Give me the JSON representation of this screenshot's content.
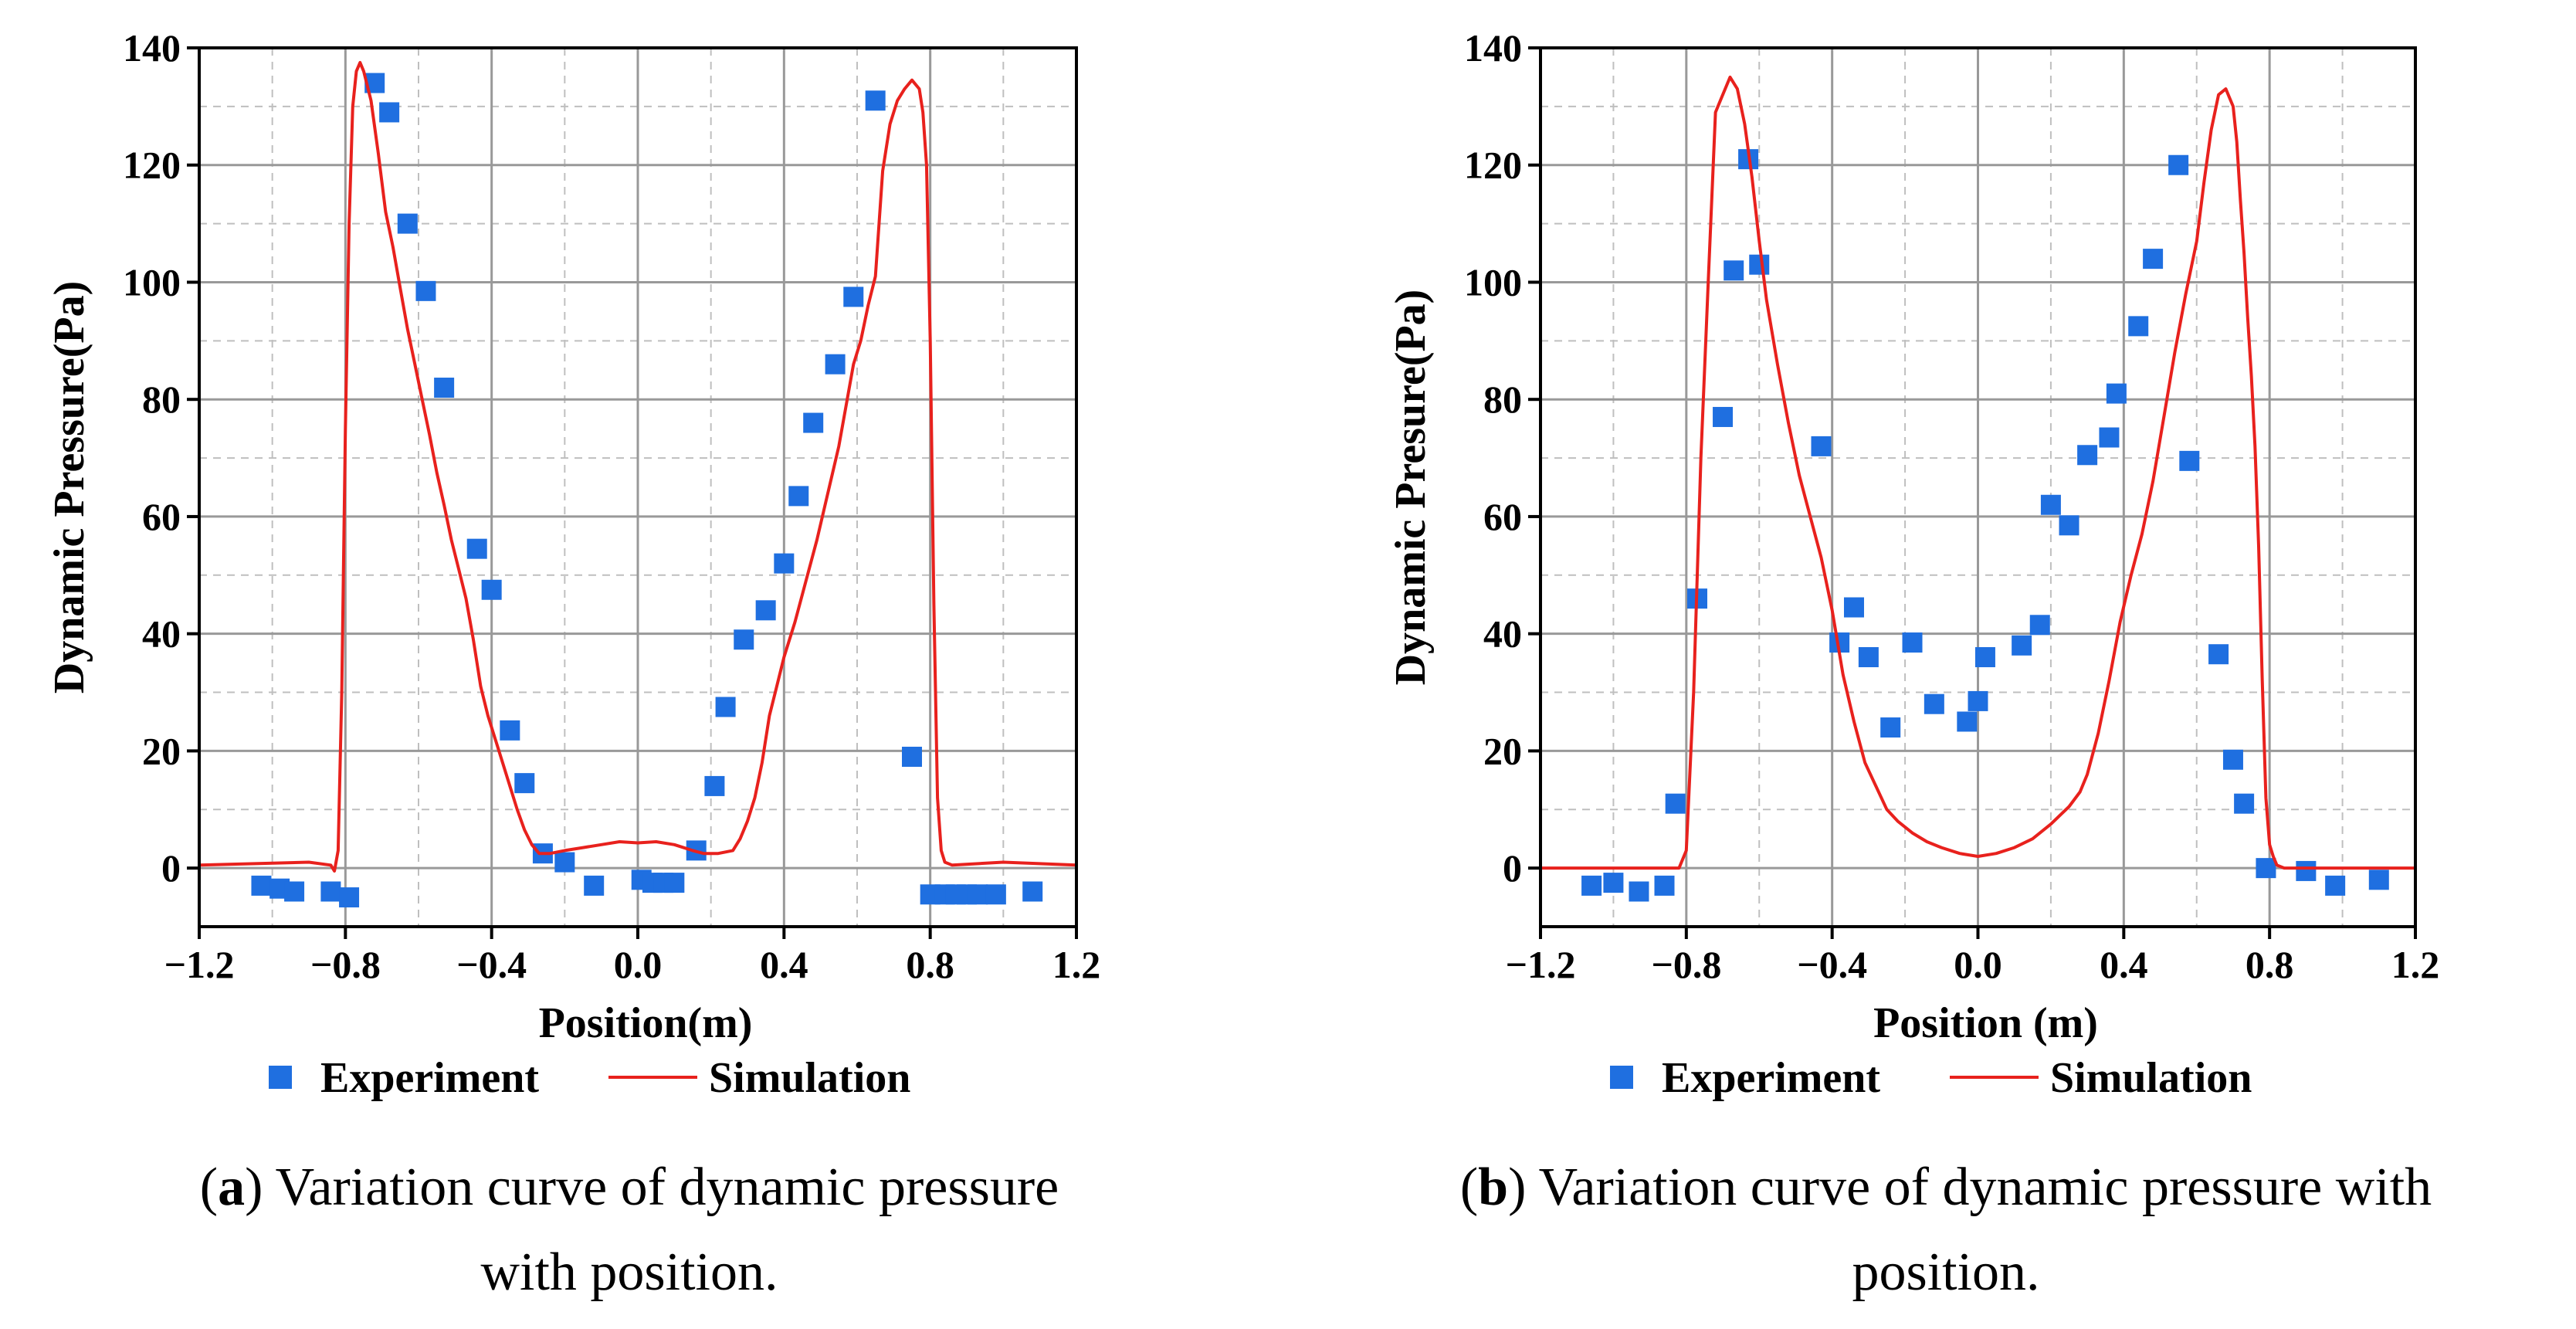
{
  "chart_data": [
    {
      "type": "scatter",
      "panel_letter": "a",
      "caption_line1": ") Variation curve of dynamic pressure",
      "caption_line2": "with position.",
      "xlabel": "Position(m)",
      "ylabel": "Dynamic Pressure(Pa)",
      "xlim": [
        -1.2,
        1.2
      ],
      "ylim": [
        -10,
        140
      ],
      "xticks": [
        -1.2,
        -0.8,
        -0.4,
        0.0,
        0.4,
        0.8,
        1.2
      ],
      "xtick_labels": [
        "−1.2",
        "−0.8",
        "−0.4",
        "0.0",
        "0.4",
        "0.8",
        "1.2"
      ],
      "yticks": [
        0,
        20,
        40,
        60,
        80,
        100,
        120,
        140
      ],
      "ytick_labels": [
        "0",
        "20",
        "40",
        "60",
        "80",
        "100",
        "120",
        "140"
      ],
      "grid": true,
      "legend_position": "bottom",
      "series": [
        {
          "name": "Experiment",
          "kind": "scatter",
          "color": "#1f6fe0",
          "points": [
            [
              -1.03,
              -3
            ],
            [
              -0.98,
              -3.5
            ],
            [
              -0.94,
              -4
            ],
            [
              -0.84,
              -4
            ],
            [
              -0.79,
              -5
            ],
            [
              -0.72,
              134
            ],
            [
              -0.68,
              129
            ],
            [
              -0.63,
              110
            ],
            [
              -0.58,
              98.5
            ],
            [
              -0.53,
              82
            ],
            [
              -0.44,
              54.5
            ],
            [
              -0.4,
              47.5
            ],
            [
              -0.35,
              23.5
            ],
            [
              -0.31,
              14.5
            ],
            [
              -0.26,
              2.5
            ],
            [
              -0.2,
              1
            ],
            [
              -0.12,
              -3
            ],
            [
              0.01,
              -2
            ],
            [
              0.04,
              -2.5
            ],
            [
              0.07,
              -2.5
            ],
            [
              0.1,
              -2.5
            ],
            [
              0.16,
              3
            ],
            [
              0.21,
              14
            ],
            [
              0.24,
              27.5
            ],
            [
              0.29,
              39
            ],
            [
              0.35,
              44
            ],
            [
              0.4,
              52
            ],
            [
              0.44,
              63.5
            ],
            [
              0.48,
              76
            ],
            [
              0.54,
              86
            ],
            [
              0.59,
              97.5
            ],
            [
              0.65,
              131
            ],
            [
              0.75,
              19
            ],
            [
              0.8,
              -4.5
            ],
            [
              0.84,
              -4.5
            ],
            [
              0.87,
              -4.5
            ],
            [
              0.9,
              -4.5
            ],
            [
              0.93,
              -4.5
            ],
            [
              0.98,
              -4.5
            ],
            [
              1.08,
              -4
            ]
          ]
        },
        {
          "name": "Simulation",
          "kind": "line",
          "color": "#e8211d",
          "points": [
            [
              -1.2,
              0.5
            ],
            [
              -0.9,
              1
            ],
            [
              -0.84,
              0.5
            ],
            [
              -0.83,
              -0.5
            ],
            [
              -0.82,
              3
            ],
            [
              -0.81,
              30
            ],
            [
              -0.8,
              75
            ],
            [
              -0.79,
              110
            ],
            [
              -0.78,
              130
            ],
            [
              -0.77,
              136
            ],
            [
              -0.76,
              137.5
            ],
            [
              -0.75,
              136
            ],
            [
              -0.73,
              131
            ],
            [
              -0.71,
              122
            ],
            [
              -0.69,
              112
            ],
            [
              -0.67,
              106
            ],
            [
              -0.65,
              99
            ],
            [
              -0.63,
              92
            ],
            [
              -0.61,
              86
            ],
            [
              -0.59,
              80
            ],
            [
              -0.57,
              74
            ],
            [
              -0.55,
              67.5
            ],
            [
              -0.53,
              62
            ],
            [
              -0.51,
              56
            ],
            [
              -0.49,
              51
            ],
            [
              -0.47,
              46
            ],
            [
              -0.45,
              39
            ],
            [
              -0.43,
              31
            ],
            [
              -0.41,
              26
            ],
            [
              -0.39,
              22
            ],
            [
              -0.37,
              18
            ],
            [
              -0.35,
              14
            ],
            [
              -0.33,
              10
            ],
            [
              -0.31,
              6.5
            ],
            [
              -0.29,
              4
            ],
            [
              -0.27,
              2.5
            ],
            [
              -0.24,
              2.5
            ],
            [
              -0.2,
              3
            ],
            [
              -0.15,
              3.5
            ],
            [
              -0.1,
              4
            ],
            [
              -0.05,
              4.5
            ],
            [
              0.0,
              4.3
            ],
            [
              0.05,
              4.5
            ],
            [
              0.1,
              4
            ],
            [
              0.15,
              3
            ],
            [
              0.18,
              2.5
            ],
            [
              0.22,
              2.5
            ],
            [
              0.26,
              3
            ],
            [
              0.28,
              5
            ],
            [
              0.3,
              8
            ],
            [
              0.32,
              12
            ],
            [
              0.34,
              18
            ],
            [
              0.36,
              26
            ],
            [
              0.38,
              31
            ],
            [
              0.4,
              36
            ],
            [
              0.43,
              42
            ],
            [
              0.46,
              49
            ],
            [
              0.49,
              56
            ],
            [
              0.52,
              64
            ],
            [
              0.55,
              72
            ],
            [
              0.57,
              79
            ],
            [
              0.59,
              86
            ],
            [
              0.61,
              90
            ],
            [
              0.63,
              96
            ],
            [
              0.65,
              101
            ],
            [
              0.66,
              110
            ],
            [
              0.67,
              119
            ],
            [
              0.69,
              127
            ],
            [
              0.71,
              131
            ],
            [
              0.73,
              133
            ],
            [
              0.75,
              134.5
            ],
            [
              0.77,
              133
            ],
            [
              0.78,
              129
            ],
            [
              0.79,
              120
            ],
            [
              0.8,
              90
            ],
            [
              0.81,
              45
            ],
            [
              0.82,
              12
            ],
            [
              0.83,
              3
            ],
            [
              0.84,
              1
            ],
            [
              0.86,
              0.5
            ],
            [
              1.0,
              1
            ],
            [
              1.2,
              0.5
            ]
          ]
        }
      ]
    },
    {
      "type": "scatter",
      "panel_letter": "b",
      "caption_line1": ") Variation curve of dynamic pressure with",
      "caption_line2": "position.",
      "xlabel": "Position (m)",
      "ylabel": "Dynamic Presure(Pa)",
      "xlim": [
        -1.2,
        1.2
      ],
      "ylim": [
        -10,
        140
      ],
      "xticks": [
        -1.2,
        -0.8,
        -0.4,
        0.0,
        0.4,
        0.8,
        1.2
      ],
      "xtick_labels": [
        "−1.2",
        "−0.8",
        "−0.4",
        "0.0",
        "0.4",
        "0.8",
        "1.2"
      ],
      "yticks": [
        0,
        20,
        40,
        60,
        80,
        100,
        120,
        140
      ],
      "ytick_labels": [
        "0",
        "20",
        "40",
        "60",
        "80",
        "100",
        "120",
        "140"
      ],
      "grid": true,
      "legend_position": "bottom",
      "series": [
        {
          "name": "Experiment",
          "kind": "scatter",
          "color": "#1f6fe0",
          "points": [
            [
              -1.06,
              -3
            ],
            [
              -1.0,
              -2.5
            ],
            [
              -0.93,
              -4
            ],
            [
              -0.86,
              -3
            ],
            [
              -0.83,
              11
            ],
            [
              -0.77,
              46
            ],
            [
              -0.7,
              77
            ],
            [
              -0.67,
              102
            ],
            [
              -0.63,
              121
            ],
            [
              -0.6,
              103
            ],
            [
              -0.43,
              72
            ],
            [
              -0.38,
              38.5
            ],
            [
              -0.34,
              44.5
            ],
            [
              -0.3,
              36
            ],
            [
              -0.24,
              24
            ],
            [
              -0.18,
              38.5
            ],
            [
              -0.12,
              28
            ],
            [
              -0.03,
              25
            ],
            [
              0.0,
              28.5
            ],
            [
              0.02,
              36
            ],
            [
              0.12,
              38
            ],
            [
              0.17,
              41.5
            ],
            [
              0.2,
              62
            ],
            [
              0.25,
              58.5
            ],
            [
              0.3,
              70.5
            ],
            [
              0.36,
              73.5
            ],
            [
              0.38,
              81
            ],
            [
              0.44,
              92.5
            ],
            [
              0.48,
              104
            ],
            [
              0.55,
              120
            ],
            [
              0.58,
              69.5
            ],
            [
              0.66,
              36.5
            ],
            [
              0.7,
              18.5
            ],
            [
              0.73,
              11
            ],
            [
              0.79,
              0
            ],
            [
              0.9,
              -0.5
            ],
            [
              0.98,
              -3
            ],
            [
              1.1,
              -2
            ]
          ]
        },
        {
          "name": "Simulation",
          "kind": "line",
          "color": "#e8211d",
          "points": [
            [
              -1.2,
              0
            ],
            [
              -0.9,
              0
            ],
            [
              -0.82,
              0
            ],
            [
              -0.8,
              3
            ],
            [
              -0.78,
              30
            ],
            [
              -0.76,
              70
            ],
            [
              -0.74,
              100
            ],
            [
              -0.72,
              129
            ],
            [
              -0.7,
              132
            ],
            [
              -0.68,
              135
            ],
            [
              -0.66,
              133
            ],
            [
              -0.64,
              127
            ],
            [
              -0.62,
              118
            ],
            [
              -0.6,
              107
            ],
            [
              -0.58,
              97
            ],
            [
              -0.55,
              86
            ],
            [
              -0.52,
              76
            ],
            [
              -0.49,
              67
            ],
            [
              -0.46,
              60
            ],
            [
              -0.43,
              53
            ],
            [
              -0.4,
              44
            ],
            [
              -0.37,
              33
            ],
            [
              -0.34,
              25
            ],
            [
              -0.31,
              18
            ],
            [
              -0.28,
              14
            ],
            [
              -0.25,
              10
            ],
            [
              -0.22,
              8
            ],
            [
              -0.18,
              6
            ],
            [
              -0.14,
              4.5
            ],
            [
              -0.1,
              3.5
            ],
            [
              -0.05,
              2.5
            ],
            [
              0.0,
              2
            ],
            [
              0.05,
              2.5
            ],
            [
              0.1,
              3.5
            ],
            [
              0.15,
              5
            ],
            [
              0.2,
              7.5
            ],
            [
              0.25,
              10.5
            ],
            [
              0.28,
              13
            ],
            [
              0.3,
              16
            ],
            [
              0.33,
              23
            ],
            [
              0.36,
              32
            ],
            [
              0.39,
              42
            ],
            [
              0.42,
              50
            ],
            [
              0.45,
              57
            ],
            [
              0.48,
              66
            ],
            [
              0.51,
              77
            ],
            [
              0.54,
              88
            ],
            [
              0.57,
              98
            ],
            [
              0.6,
              107
            ],
            [
              0.62,
              117
            ],
            [
              0.64,
              126
            ],
            [
              0.66,
              132
            ],
            [
              0.68,
              133
            ],
            [
              0.7,
              130
            ],
            [
              0.71,
              124
            ],
            [
              0.72,
              114
            ],
            [
              0.73,
              105
            ],
            [
              0.74,
              94
            ],
            [
              0.75,
              84
            ],
            [
              0.76,
              72
            ],
            [
              0.77,
              55
            ],
            [
              0.78,
              32
            ],
            [
              0.79,
              12
            ],
            [
              0.8,
              4
            ],
            [
              0.81,
              2
            ],
            [
              0.82,
              0.5
            ],
            [
              0.84,
              0
            ],
            [
              1.0,
              0
            ],
            [
              1.2,
              0
            ]
          ]
        }
      ]
    }
  ]
}
